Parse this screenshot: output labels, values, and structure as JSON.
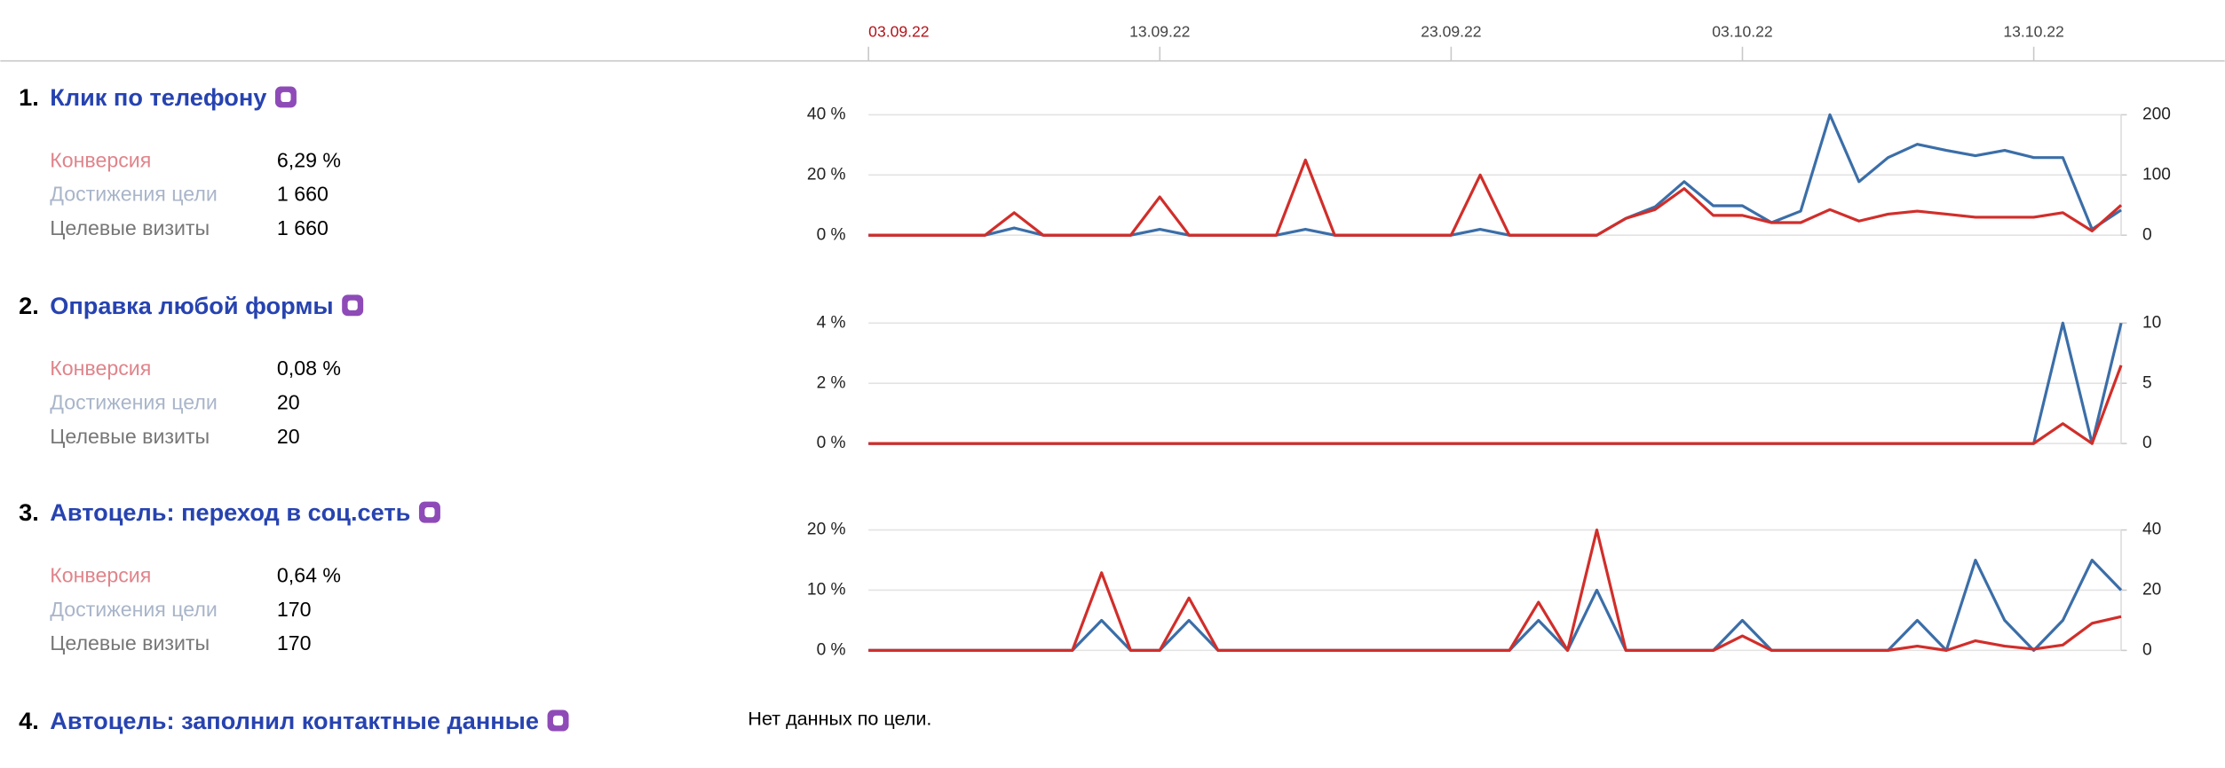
{
  "timeline": {
    "categories": [
      "03.09.22",
      null,
      null,
      null,
      null,
      null,
      null,
      null,
      null,
      null,
      "13.09.22",
      null,
      null,
      null,
      null,
      null,
      null,
      null,
      null,
      null,
      "23.09.22",
      null,
      null,
      null,
      null,
      null,
      null,
      null,
      null,
      null,
      "03.10.22",
      null,
      null,
      null,
      null,
      null,
      null,
      null,
      null,
      null,
      "13.10.22",
      null,
      null,
      null
    ]
  },
  "goals": [
    {
      "number": "1.",
      "title": "Клик по телефону",
      "metrics": [
        {
          "label": "Конверсия",
          "value": "6,29 %"
        },
        {
          "label": "Достижения цели",
          "value": "1 660"
        },
        {
          "label": "Целевые визиты",
          "value": "1 660"
        }
      ],
      "chart": {
        "type": "line",
        "ylim": [
          0,
          40
        ],
        "yticks": [
          {
            "value": 0,
            "label": "0 %"
          },
          {
            "value": 20,
            "label": "20 %"
          },
          {
            "value": 40,
            "label": "40 %"
          }
        ],
        "y2lim": [
          0,
          200
        ],
        "y2ticks": [
          0,
          100,
          200
        ],
        "grid": true,
        "series": [
          {
            "color": "#d12e2a",
            "values": [
              0,
              0,
              0,
              0,
              0,
              7.5,
              0,
              0,
              0,
              0,
              12.7,
              0,
              0,
              0,
              0,
              25,
              0,
              0,
              0,
              0,
              0,
              20,
              0,
              0,
              0,
              0,
              5.6,
              8.5,
              15.5,
              6.6,
              6.6,
              4.2,
              4.2,
              8.5,
              4.7,
              7,
              8,
              7,
              6,
              6,
              6,
              7.5,
              1.4,
              10
            ]
          },
          {
            "color": "#3b6ea8",
            "axis": "y2",
            "values": [
              0,
              0,
              0,
              0,
              0,
              12,
              0,
              0,
              0,
              0,
              10,
              0,
              0,
              0,
              0,
              10,
              0,
              0,
              0,
              0,
              0,
              10,
              0,
              0,
              0,
              0,
              28,
              47,
              89,
              49,
              49,
              21,
              40,
              200,
              89,
              129,
              151,
              141,
              132,
              141,
              129,
              129,
              10,
              42
            ]
          }
        ]
      }
    },
    {
      "number": "2.",
      "title": "Оправка любой формы",
      "metrics": [
        {
          "label": "Конверсия",
          "value": "0,08 %"
        },
        {
          "label": "Достижения цели",
          "value": "20"
        },
        {
          "label": "Целевые визиты",
          "value": "20"
        }
      ],
      "chart": {
        "type": "line",
        "ylim": [
          0,
          4
        ],
        "yticks": [
          {
            "value": 0,
            "label": "0 %"
          },
          {
            "value": 2,
            "label": "2 %"
          },
          {
            "value": 4,
            "label": "4 %"
          }
        ],
        "y2lim": [
          0,
          10
        ],
        "y2ticks": [
          0,
          5,
          10
        ],
        "grid": true,
        "series": [
          {
            "color": "#d12e2a",
            "values": [
              0,
              0,
              0,
              0,
              0,
              0,
              0,
              0,
              0,
              0,
              0,
              0,
              0,
              0,
              0,
              0,
              0,
              0,
              0,
              0,
              0,
              0,
              0,
              0,
              0,
              0,
              0,
              0,
              0,
              0,
              0,
              0,
              0,
              0,
              0,
              0,
              0,
              0,
              0,
              0,
              0,
              0.66,
              0,
              2.6
            ]
          },
          {
            "color": "#3b6ea8",
            "axis": "y2",
            "values": [
              0,
              0,
              0,
              0,
              0,
              0,
              0,
              0,
              0,
              0,
              0,
              0,
              0,
              0,
              0,
              0,
              0,
              0,
              0,
              0,
              0,
              0,
              0,
              0,
              0,
              0,
              0,
              0,
              0,
              0,
              0,
              0,
              0,
              0,
              0,
              0,
              0,
              0,
              0,
              0,
              0,
              10,
              0,
              10
            ]
          }
        ]
      }
    },
    {
      "number": "3.",
      "title": "Автоцель: переход в соц.сеть",
      "metrics": [
        {
          "label": "Конверсия",
          "value": "0,64 %"
        },
        {
          "label": "Достижения цели",
          "value": "170"
        },
        {
          "label": "Целевые визиты",
          "value": "170"
        }
      ],
      "chart": {
        "type": "line",
        "ylim": [
          0,
          20
        ],
        "yticks": [
          {
            "value": 0,
            "label": "0 %"
          },
          {
            "value": 10,
            "label": "10 %"
          },
          {
            "value": 20,
            "label": "20 %"
          }
        ],
        "y2lim": [
          0,
          40
        ],
        "y2ticks": [
          0,
          20,
          40
        ],
        "grid": true,
        "series": [
          {
            "color": "#d12e2a",
            "values": [
              0,
              0,
              0,
              0,
              0,
              0,
              0,
              0,
              12.9,
              0,
              0,
              8.7,
              0,
              0,
              0,
              0,
              0,
              0,
              0,
              0,
              0,
              0,
              0,
              8,
              0,
              20,
              0,
              0,
              0,
              0,
              2.4,
              0,
              0,
              0,
              0,
              0,
              0.7,
              0,
              1.6,
              0.7,
              0.2,
              0.9,
              4.5,
              5.6
            ]
          },
          {
            "color": "#3b6ea8",
            "axis": "y2",
            "values": [
              0,
              0,
              0,
              0,
              0,
              0,
              0,
              0,
              10,
              0,
              0,
              10,
              0,
              0,
              0,
              0,
              0,
              0,
              0,
              0,
              0,
              0,
              0,
              10,
              0,
              20,
              0,
              0,
              0,
              0,
              10,
              0,
              0,
              0,
              0,
              0,
              10,
              0,
              30,
              10,
              0,
              10,
              30,
              20
            ]
          }
        ]
      }
    },
    {
      "number": "4.",
      "title": "Автоцель: заполнил контактные данные",
      "message": "Нет данных по цели."
    }
  ]
}
